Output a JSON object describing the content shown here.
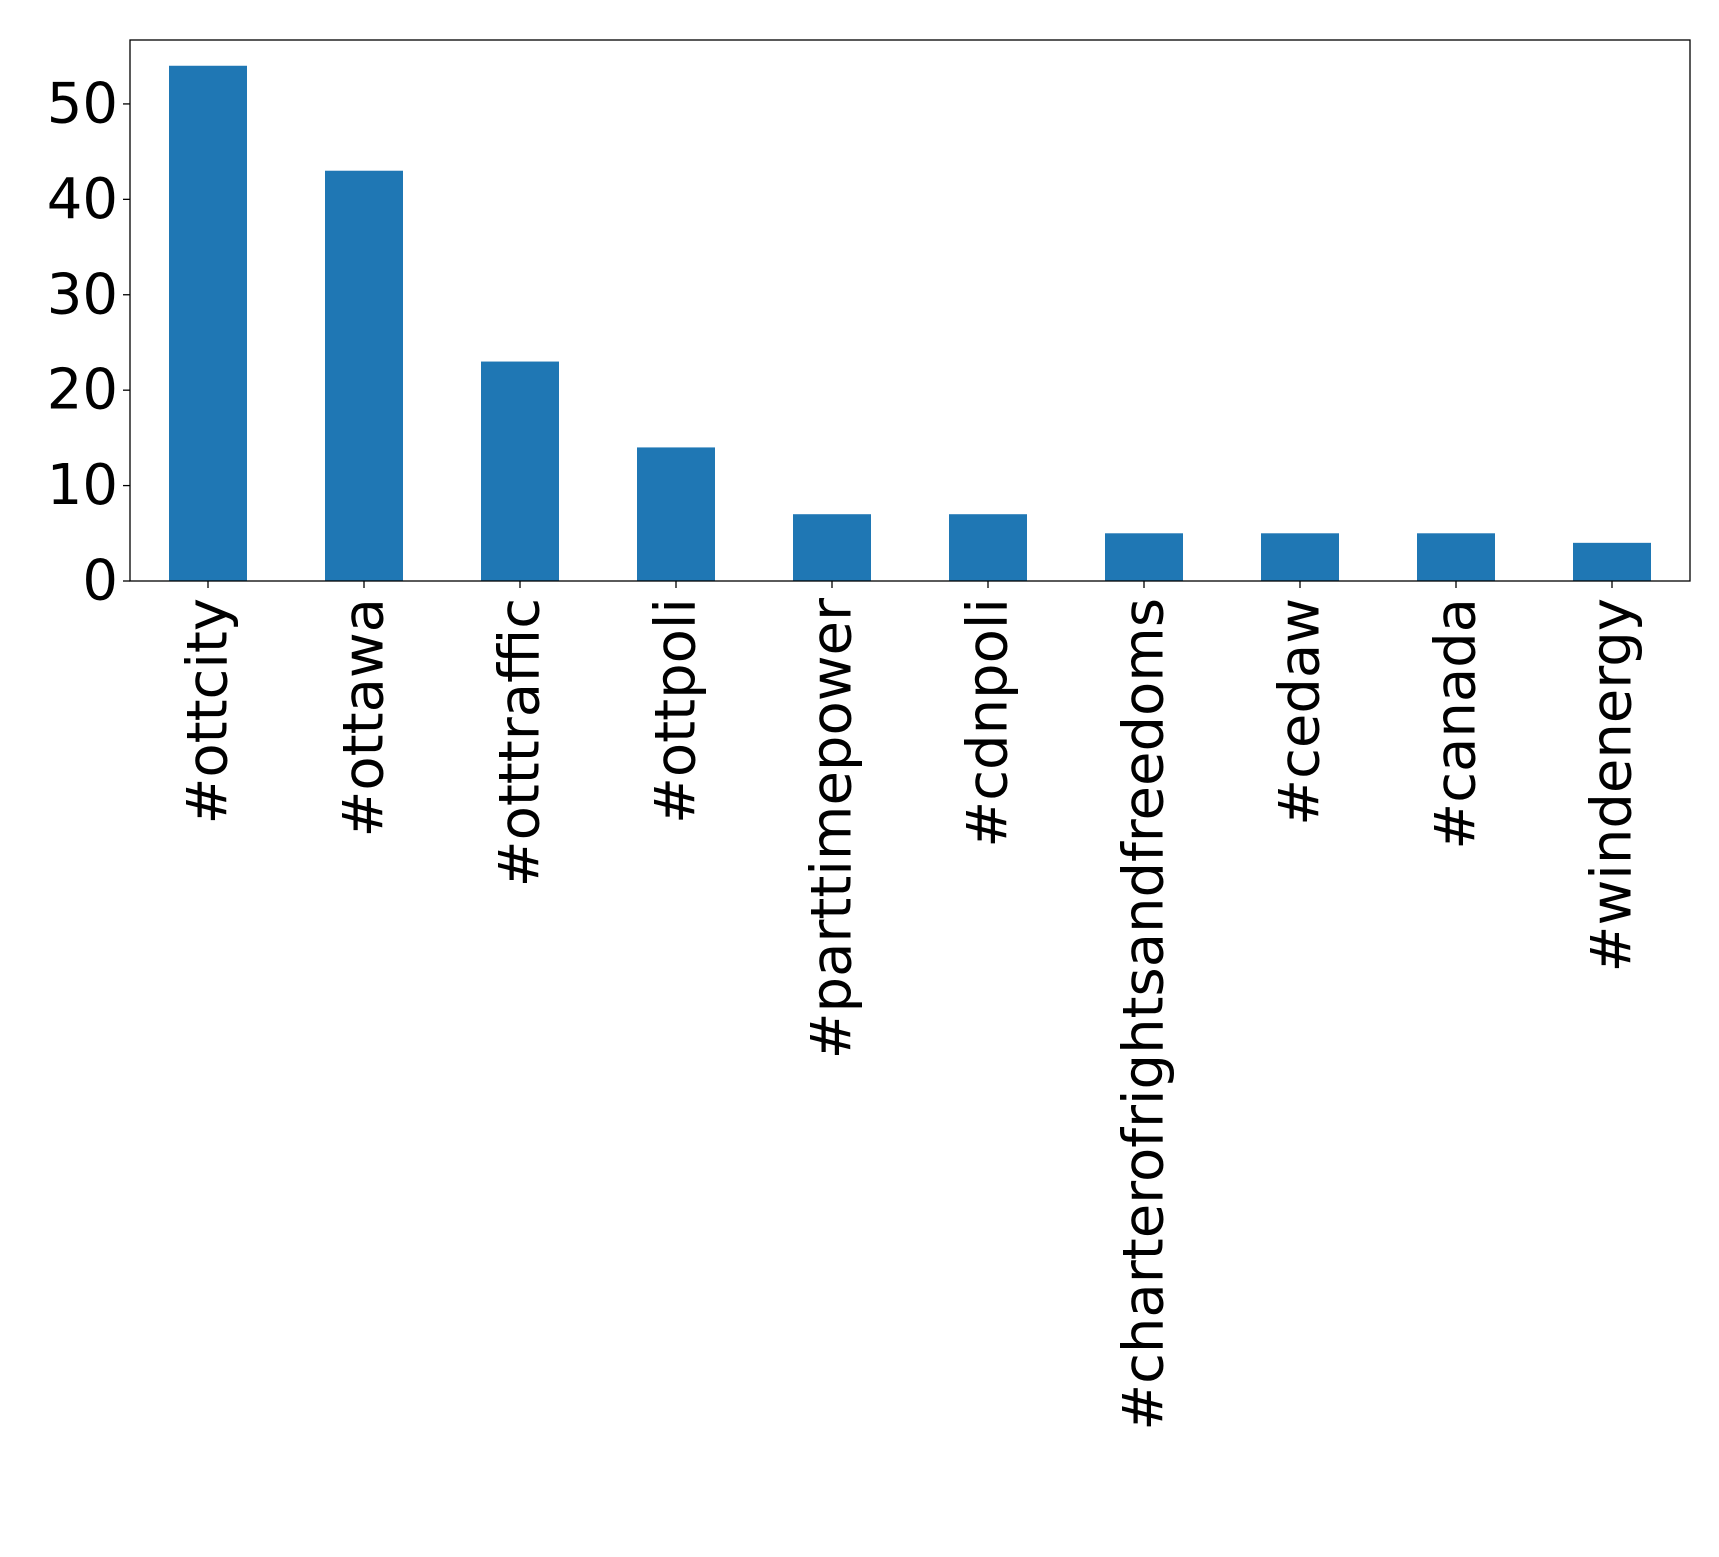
{
  "chart_data": {
    "type": "bar",
    "categories": [
      "#ottcity",
      "#ottawa",
      "#otttraffic",
      "#ottpoli",
      "#parttimepower",
      "#cdnpoli",
      "#charterofrightsandfreedoms",
      "#cedaw",
      "#canada",
      "#windenergy"
    ],
    "values": [
      54,
      43,
      23,
      14,
      7,
      7,
      5,
      5,
      5,
      4
    ],
    "title": "",
    "xlabel": "",
    "ylabel": "",
    "ylim": [
      0,
      56.7
    ],
    "yticks": [
      0,
      10,
      20,
      30,
      40,
      50
    ],
    "grid": false,
    "legend": "none",
    "bar_color": "#1f77b4"
  }
}
